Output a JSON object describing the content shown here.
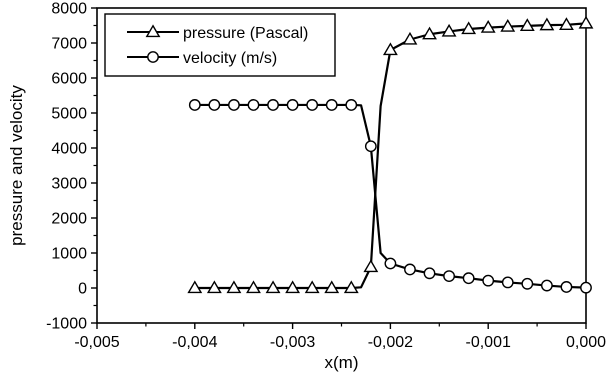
{
  "chart_data": {
    "type": "line",
    "xlabel": "x(m)",
    "ylabel": "pressure and velocity",
    "xlim": [
      -0.005,
      0.0
    ],
    "ylim": [
      -1000,
      8000
    ],
    "x_ticks": [
      -0.005,
      -0.004,
      -0.003,
      -0.002,
      -0.001,
      0.0
    ],
    "x_tick_labels": [
      "-0,005",
      "-0,004",
      "-0,003",
      "-0,002",
      "-0,001",
      "0,000"
    ],
    "y_ticks": [
      -1000,
      0,
      1000,
      2000,
      3000,
      4000,
      5000,
      6000,
      7000,
      8000
    ],
    "y_tick_labels": [
      "-1000",
      "0",
      "1000",
      "2000",
      "3000",
      "4000",
      "5000",
      "6000",
      "7000",
      "8000"
    ],
    "legend_position": "top-left",
    "series": [
      {
        "name": "pressure (Pascal)",
        "marker": "triangle",
        "line": [
          [
            -0.004,
            0
          ],
          [
            -0.0038,
            0
          ],
          [
            -0.0036,
            0
          ],
          [
            -0.0034,
            0
          ],
          [
            -0.0032,
            0
          ],
          [
            -0.003,
            0
          ],
          [
            -0.0028,
            0
          ],
          [
            -0.0026,
            0
          ],
          [
            -0.0024,
            0
          ],
          [
            -0.0023,
            20
          ],
          [
            -0.0022,
            600
          ],
          [
            -0.0021,
            5200
          ],
          [
            -0.002,
            6800
          ],
          [
            -0.0018,
            7100
          ],
          [
            -0.0016,
            7250
          ],
          [
            -0.0014,
            7330
          ],
          [
            -0.0012,
            7400
          ],
          [
            -0.001,
            7440
          ],
          [
            -0.0008,
            7470
          ],
          [
            -0.0006,
            7490
          ],
          [
            -0.0004,
            7510
          ],
          [
            -0.0002,
            7520
          ],
          [
            0.0,
            7560
          ]
        ],
        "markers": [
          [
            -0.004,
            0
          ],
          [
            -0.0038,
            0
          ],
          [
            -0.0036,
            0
          ],
          [
            -0.0034,
            0
          ],
          [
            -0.0032,
            0
          ],
          [
            -0.003,
            0
          ],
          [
            -0.0028,
            0
          ],
          [
            -0.0026,
            0
          ],
          [
            -0.0024,
            0
          ],
          [
            -0.0022,
            600
          ],
          [
            -0.002,
            6800
          ],
          [
            -0.0018,
            7100
          ],
          [
            -0.0016,
            7250
          ],
          [
            -0.0014,
            7330
          ],
          [
            -0.0012,
            7400
          ],
          [
            -0.001,
            7440
          ],
          [
            -0.0008,
            7470
          ],
          [
            -0.0006,
            7490
          ],
          [
            -0.0004,
            7510
          ],
          [
            -0.0002,
            7520
          ],
          [
            0.0,
            7560
          ]
        ]
      },
      {
        "name": "velocity (m/s)",
        "marker": "circle",
        "line": [
          [
            -0.004,
            5230
          ],
          [
            -0.0038,
            5230
          ],
          [
            -0.0036,
            5230
          ],
          [
            -0.0034,
            5230
          ],
          [
            -0.0032,
            5230
          ],
          [
            -0.003,
            5230
          ],
          [
            -0.0028,
            5230
          ],
          [
            -0.0026,
            5230
          ],
          [
            -0.0024,
            5230
          ],
          [
            -0.0023,
            5220
          ],
          [
            -0.0022,
            4050
          ],
          [
            -0.0021,
            1000
          ],
          [
            -0.002,
            700
          ],
          [
            -0.0018,
            530
          ],
          [
            -0.0016,
            420
          ],
          [
            -0.0014,
            340
          ],
          [
            -0.0012,
            280
          ],
          [
            -0.001,
            210
          ],
          [
            -0.0008,
            160
          ],
          [
            -0.0006,
            120
          ],
          [
            -0.0004,
            70
          ],
          [
            -0.0002,
            30
          ],
          [
            0.0,
            10
          ]
        ],
        "markers": [
          [
            -0.004,
            5230
          ],
          [
            -0.0038,
            5230
          ],
          [
            -0.0036,
            5230
          ],
          [
            -0.0034,
            5230
          ],
          [
            -0.0032,
            5230
          ],
          [
            -0.003,
            5230
          ],
          [
            -0.0028,
            5230
          ],
          [
            -0.0026,
            5230
          ],
          [
            -0.0024,
            5230
          ],
          [
            -0.0022,
            4050
          ],
          [
            -0.002,
            700
          ],
          [
            -0.0018,
            530
          ],
          [
            -0.0016,
            420
          ],
          [
            -0.0014,
            340
          ],
          [
            -0.0012,
            280
          ],
          [
            -0.001,
            210
          ],
          [
            -0.0008,
            160
          ],
          [
            -0.0006,
            120
          ],
          [
            -0.0004,
            70
          ],
          [
            -0.0002,
            30
          ],
          [
            0.0,
            10
          ]
        ]
      }
    ]
  }
}
